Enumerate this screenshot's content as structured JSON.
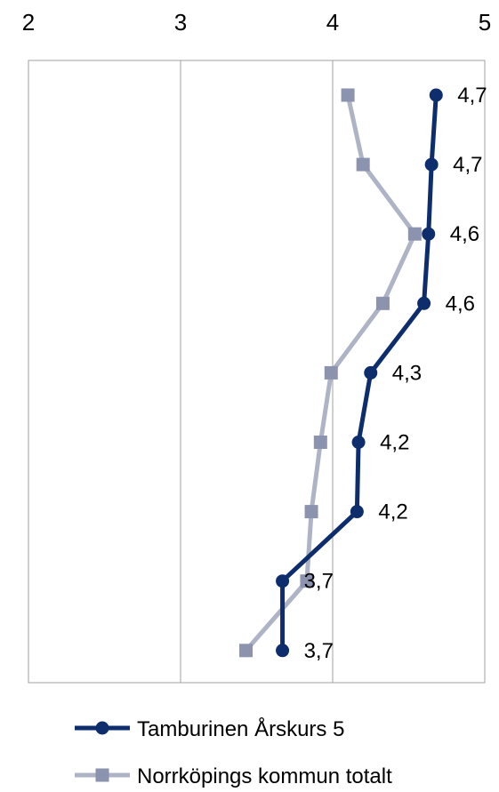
{
  "chart_data": {
    "type": "line",
    "orientation": "horizontal",
    "x_axis_position": "top",
    "xlim": [
      2,
      5
    ],
    "x_ticks": [
      2,
      3,
      4,
      5
    ],
    "x_tick_labels": [
      "2",
      "3",
      "4",
      "5"
    ],
    "grid": true,
    "legend_position": "bottom",
    "categories_count": 9,
    "series": [
      {
        "name": "Tamburinen Årskurs 5",
        "color": "#0d2d6c",
        "marker": "circle",
        "values": [
          4.68,
          4.65,
          4.63,
          4.6,
          4.25,
          4.17,
          4.16,
          3.67,
          3.67
        ],
        "labels": [
          "4,7",
          "4,7",
          "4,6",
          "4,6",
          "4,3",
          "4,2",
          "4,2",
          "3,7",
          "3,7"
        ]
      },
      {
        "name": "Norrköpings kommun totalt",
        "color": "#aeb4c6",
        "marker_color": "#8b93ae",
        "marker": "square",
        "values": [
          4.1,
          4.2,
          4.54,
          4.33,
          3.99,
          3.92,
          3.86,
          3.83,
          3.43
        ]
      }
    ]
  }
}
